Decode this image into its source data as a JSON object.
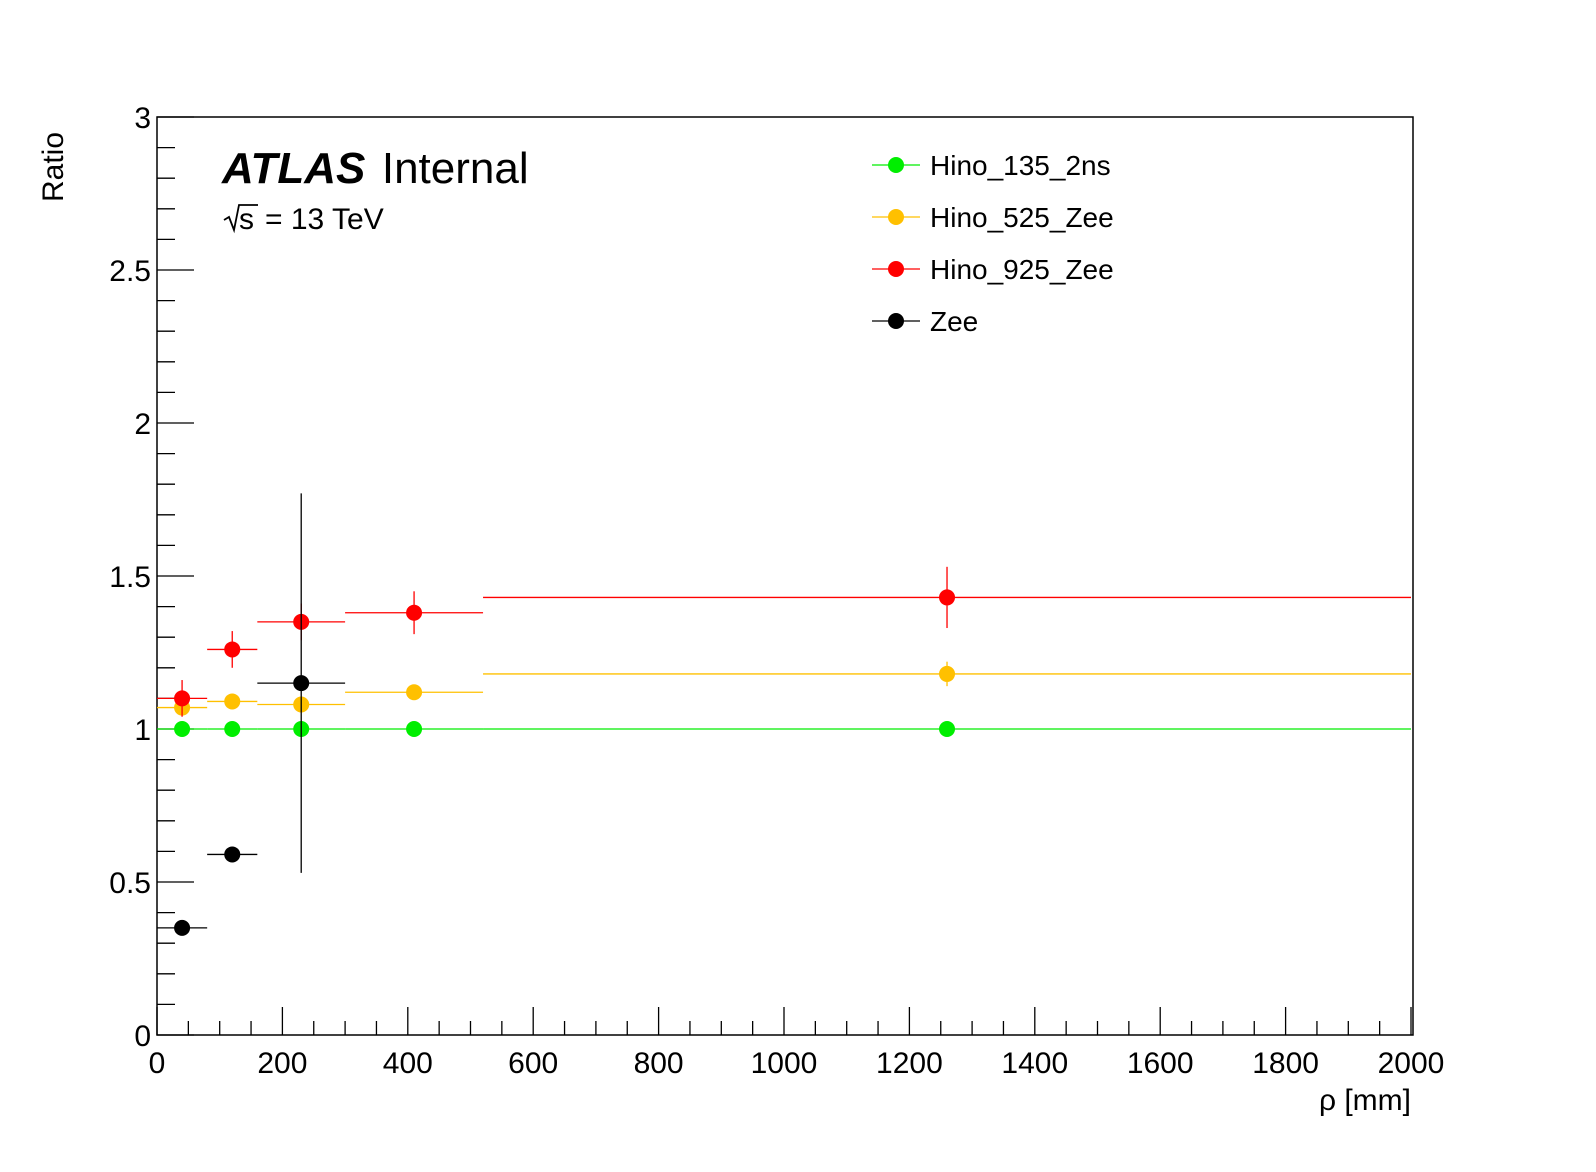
{
  "chart_data": {
    "type": "scatter",
    "ylabel": "Ratio",
    "xlabel": "ρ [mm]",
    "xlim": [
      0,
      2000
    ],
    "ylim": [
      0,
      3
    ],
    "x_ticks": [
      "0",
      "200",
      "400",
      "600",
      "800",
      "1000",
      "1200",
      "1400",
      "1600",
      "1800",
      "2000"
    ],
    "y_ticks": [
      "0",
      "0.5",
      "1",
      "1.5",
      "2",
      "2.5",
      "3"
    ],
    "grid": false,
    "legend_position": "top-right",
    "annotations": {
      "experiment": "ATLAS",
      "status": "Internal",
      "energy_sqrt": "s",
      "energy_value": "= 13 TeV"
    },
    "series": [
      {
        "name": "Hino_135_2ns",
        "color": "#00ee00",
        "points": [
          {
            "x": 40,
            "xlo": 0,
            "xhi": 80,
            "y": 1.0,
            "err": 0
          },
          {
            "x": 120,
            "xlo": 80,
            "xhi": 160,
            "y": 1.0,
            "err": 0
          },
          {
            "x": 230,
            "xlo": 160,
            "xhi": 300,
            "y": 1.0,
            "err": 0
          },
          {
            "x": 410,
            "xlo": 300,
            "xhi": 520,
            "y": 1.0,
            "err": 0
          },
          {
            "x": 1260,
            "xlo": 520,
            "xhi": 2000,
            "y": 1.0,
            "err": 0
          }
        ]
      },
      {
        "name": "Hino_525_Zee",
        "color": "#ffc000",
        "points": [
          {
            "x": 40,
            "xlo": 0,
            "xhi": 80,
            "y": 1.07,
            "err": 0.02
          },
          {
            "x": 120,
            "xlo": 80,
            "xhi": 160,
            "y": 1.09,
            "err": 0.02
          },
          {
            "x": 230,
            "xlo": 160,
            "xhi": 300,
            "y": 1.08,
            "err": 0.02
          },
          {
            "x": 410,
            "xlo": 300,
            "xhi": 520,
            "y": 1.12,
            "err": 0.02
          },
          {
            "x": 1260,
            "xlo": 520,
            "xhi": 2000,
            "y": 1.18,
            "err": 0.04
          }
        ]
      },
      {
        "name": "Hino_925_Zee",
        "color": "#ff0000",
        "points": [
          {
            "x": 40,
            "xlo": 0,
            "xhi": 80,
            "y": 1.1,
            "err": 0.06
          },
          {
            "x": 120,
            "xlo": 80,
            "xhi": 160,
            "y": 1.26,
            "err": 0.06
          },
          {
            "x": 230,
            "xlo": 160,
            "xhi": 300,
            "y": 1.35,
            "err": 0.06
          },
          {
            "x": 410,
            "xlo": 300,
            "xhi": 520,
            "y": 1.38,
            "err": 0.07
          },
          {
            "x": 1260,
            "xlo": 520,
            "xhi": 2000,
            "y": 1.43,
            "err": 0.1
          }
        ]
      },
      {
        "name": "Zee",
        "color": "#000000",
        "points": [
          {
            "x": 40,
            "xlo": 0,
            "xhi": 80,
            "y": 0.35,
            "err": 0.0
          },
          {
            "x": 120,
            "xlo": 80,
            "xhi": 160,
            "y": 0.59,
            "err": 0.0
          },
          {
            "x": 230,
            "xlo": 160,
            "xhi": 300,
            "y": 1.15,
            "err": 0.62
          }
        ]
      }
    ]
  }
}
